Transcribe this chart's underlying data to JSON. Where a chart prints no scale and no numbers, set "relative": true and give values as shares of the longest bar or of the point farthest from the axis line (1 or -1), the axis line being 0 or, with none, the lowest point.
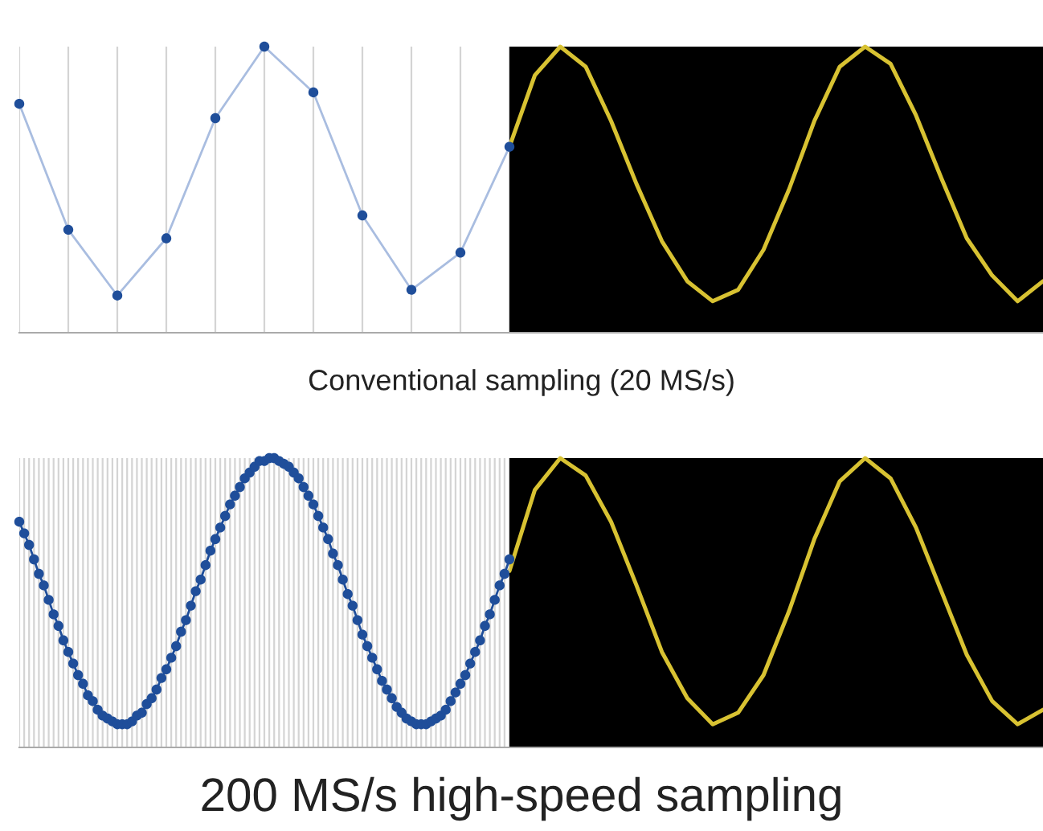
{
  "chart_data": [
    {
      "type": "line",
      "relative": true,
      "xlabel": "Conventional sampling (20 MS/s)",
      "categories": [
        null,
        null,
        null,
        null,
        null,
        null,
        null,
        null,
        null,
        null,
        null
      ],
      "grid": "x",
      "marker": "circle",
      "series": [
        {
          "color": "#a9bde0",
          "colors": [
            "#1f4e9a",
            "#1f4e9a",
            "#1f4e9a",
            "#1f4e9a",
            "#1f4e9a",
            "#1f4e9a",
            "#1f4e9a",
            "#1f4e9a",
            "#1f4e9a",
            "#1f4e9a",
            "#1f4e9a"
          ],
          "values": [
            0.8,
            0.36,
            0.13,
            0.33,
            0.75,
            1,
            0.84,
            0.41,
            0.15,
            0.28,
            0.65
          ]
        }
      ]
    },
    {
      "type": "line",
      "relative": true,
      "categories": [
        null,
        null,
        null,
        null,
        null,
        null,
        null,
        null,
        null,
        null,
        null,
        null,
        null,
        null,
        null,
        null,
        null,
        null,
        null,
        null,
        null,
        null
      ],
      "series": [
        {
          "color": "#d8c232",
          "values": [
            0.65,
            0.9,
            1,
            0.93,
            0.74,
            0.52,
            0.32,
            0.18,
            0.11,
            0.15,
            0.29,
            0.5,
            0.74,
            0.93,
            1,
            0.94,
            0.76,
            0.54,
            0.33,
            0.2,
            0.11,
            0.18
          ]
        }
      ]
    },
    {
      "type": "line",
      "relative": true,
      "xlabel": "200 MS/s high-speed sampling",
      "grid": "x",
      "marker": "circle",
      "categories": [
        null,
        null,
        null,
        null,
        null,
        null,
        null,
        null,
        null,
        null,
        null,
        null,
        null,
        null,
        null,
        null,
        null,
        null,
        null,
        null,
        null,
        null,
        null,
        null,
        null,
        null,
        null,
        null,
        null,
        null,
        null,
        null,
        null,
        null,
        null,
        null,
        null,
        null,
        null,
        null,
        null,
        null,
        null,
        null,
        null,
        null,
        null,
        null,
        null,
        null,
        null,
        null,
        null,
        null,
        null,
        null,
        null,
        null,
        null,
        null,
        null,
        null,
        null,
        null,
        null,
        null,
        null,
        null,
        null,
        null,
        null,
        null,
        null,
        null,
        null,
        null,
        null,
        null,
        null,
        null,
        null,
        null,
        null,
        null,
        null,
        null,
        null,
        null,
        null,
        null,
        null,
        null,
        null,
        null,
        null,
        null,
        null,
        null,
        null,
        null,
        null
      ],
      "series": [
        {
          "color": "#1f4e9a",
          "values": [
            0.78,
            0.74,
            0.7,
            0.65,
            0.6,
            0.56,
            0.51,
            0.46,
            0.42,
            0.37,
            0.33,
            0.29,
            0.25,
            0.22,
            0.18,
            0.16,
            0.13,
            0.11,
            0.1,
            0.09,
            0.08,
            0.08,
            0.08,
            0.09,
            0.11,
            0.12,
            0.15,
            0.17,
            0.2,
            0.24,
            0.27,
            0.31,
            0.35,
            0.4,
            0.44,
            0.49,
            0.54,
            0.58,
            0.63,
            0.68,
            0.72,
            0.76,
            0.8,
            0.84,
            0.87,
            0.9,
            0.93,
            0.95,
            0.97,
            0.99,
            0.99,
            1.0,
            1.0,
            0.99,
            0.98,
            0.97,
            0.95,
            0.93,
            0.9,
            0.87,
            0.84,
            0.8,
            0.76,
            0.72,
            0.67,
            0.63,
            0.58,
            0.53,
            0.49,
            0.44,
            0.39,
            0.35,
            0.31,
            0.27,
            0.23,
            0.2,
            0.17,
            0.14,
            0.12,
            0.1,
            0.09,
            0.08,
            0.08,
            0.08,
            0.09,
            0.1,
            0.11,
            0.13,
            0.16,
            0.19,
            0.22,
            0.25,
            0.29,
            0.33,
            0.37,
            0.42,
            0.46,
            0.51,
            0.56,
            0.6,
            0.65
          ]
        }
      ]
    },
    {
      "type": "line",
      "relative": true,
      "categories": [
        null,
        null,
        null,
        null,
        null,
        null,
        null,
        null,
        null,
        null,
        null,
        null,
        null,
        null,
        null,
        null,
        null,
        null,
        null,
        null,
        null,
        null
      ],
      "series": [
        {
          "color": "#d8c232",
          "values": [
            0.61,
            0.89,
            1,
            0.94,
            0.78,
            0.56,
            0.33,
            0.17,
            0.08,
            0.12,
            0.25,
            0.47,
            0.72,
            0.92,
            1,
            0.93,
            0.76,
            0.54,
            0.32,
            0.16,
            0.08,
            0.13
          ]
        }
      ]
    }
  ]
}
